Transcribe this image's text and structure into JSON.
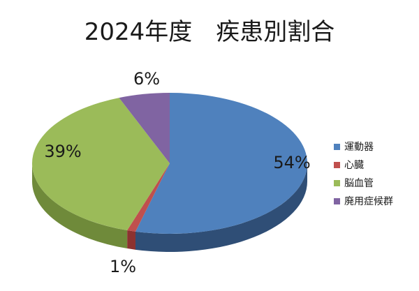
{
  "chart_data": {
    "type": "pie",
    "style": "3d",
    "title": "2024年度　疾患別割合",
    "legend_position": "right",
    "slices": [
      {
        "name": "運動器",
        "value": 54,
        "label": "54%",
        "color": "#4f81bd",
        "side_color": "#2f4e76"
      },
      {
        "name": "心臓",
        "value": 1,
        "label": "1%",
        "color": "#c0504d",
        "side_color": "#8c3230"
      },
      {
        "name": "脳血管",
        "value": 39,
        "label": "39%",
        "color": "#9bbb59",
        "side_color": "#6f8a3a"
      },
      {
        "name": "廃用症候群",
        "value": 6,
        "label": "6%",
        "color": "#8064a2",
        "side_color": "#5c4775"
      }
    ]
  }
}
